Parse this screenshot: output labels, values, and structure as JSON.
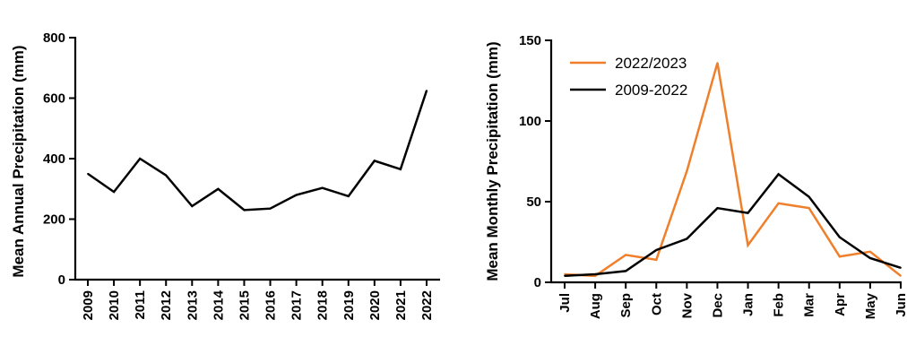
{
  "chart_data": [
    {
      "type": "line",
      "title": "",
      "xlabel": "",
      "ylabel": "Mean Annual Precipitation (mm)",
      "ylim": [
        0,
        800
      ],
      "yticks": [
        0,
        200,
        400,
        600,
        800
      ],
      "categories": [
        "2009",
        "2010",
        "2011",
        "2012",
        "2013",
        "2014",
        "2015",
        "2016",
        "2017",
        "2018",
        "2019",
        "2020",
        "2021",
        "2022"
      ],
      "series": [
        {
          "color": "#000000",
          "values": [
            350,
            290,
            400,
            345,
            243,
            300,
            230,
            235,
            280,
            303,
            276,
            393,
            365,
            625
          ]
        }
      ],
      "grid": false
    },
    {
      "type": "line",
      "title": "",
      "xlabel": "",
      "ylabel": "Mean Monthly Precipitation (mm)",
      "ylim": [
        0,
        150
      ],
      "yticks": [
        0,
        50,
        100,
        150
      ],
      "categories": [
        "Jul",
        "Aug",
        "Sep",
        "Oct",
        "Nov",
        "Dec",
        "Jan",
        "Feb",
        "Mar",
        "Apr",
        "May",
        "Jun"
      ],
      "series": [
        {
          "name": "2022/2023",
          "color": "#f07f2b",
          "values": [
            5,
            4,
            17,
            14,
            69,
            136,
            23,
            49,
            46,
            16,
            19,
            4
          ]
        },
        {
          "name": "2009-2022",
          "color": "#000000",
          "values": [
            4,
            5,
            7,
            20,
            27,
            46,
            43,
            67,
            53,
            28,
            15,
            9
          ]
        }
      ],
      "legend": "top-left",
      "grid": false
    }
  ]
}
